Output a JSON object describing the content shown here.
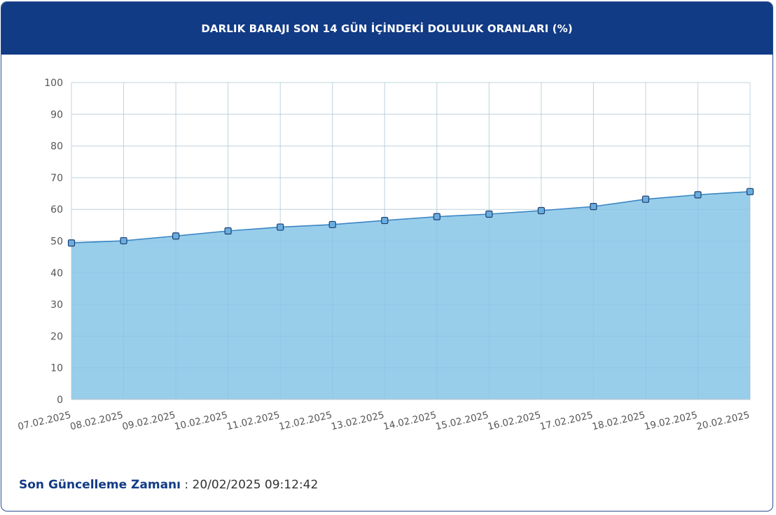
{
  "header": {
    "title": "DARLIK BARAJI SON 14 GÜN İÇİNDEKİ DOLULUK ORANLARI (%)"
  },
  "footer": {
    "label": "Son Güncelleme Zamanı",
    "separator": " : ",
    "value": "20/02/2025 09:12:42"
  },
  "colors": {
    "header_bg": "#123b86",
    "area_fill": "#99ceeb",
    "line": "#3a86c4",
    "marker_fill": "#6aaee0",
    "marker_stroke": "#1d3f70",
    "grid": "#e3e3e3"
  },
  "chart_data": {
    "type": "area",
    "title": "DARLIK BARAJI SON 14 GÜN İÇİNDEKİ DOLULUK ORANLARI (%)",
    "categories": [
      "07.02.2025",
      "08.02.2025",
      "09.02.2025",
      "10.02.2025",
      "11.02.2025",
      "12.02.2025",
      "13.02.2025",
      "14.02.2025",
      "15.02.2025",
      "16.02.2025",
      "17.02.2025",
      "18.02.2025",
      "19.02.2025",
      "20.02.2025"
    ],
    "series": [
      {
        "values": [
          49.4,
          50.1,
          51.6,
          53.2,
          54.4,
          55.2,
          56.5,
          57.7,
          58.5,
          59.6,
          60.9,
          63.2,
          64.6,
          65.6
        ]
      }
    ],
    "yticks": [
      0,
      10,
      20,
      30,
      40,
      50,
      60,
      70,
      80,
      90,
      100
    ],
    "ylim": [
      0,
      100
    ],
    "grid": true,
    "legend": "none"
  }
}
